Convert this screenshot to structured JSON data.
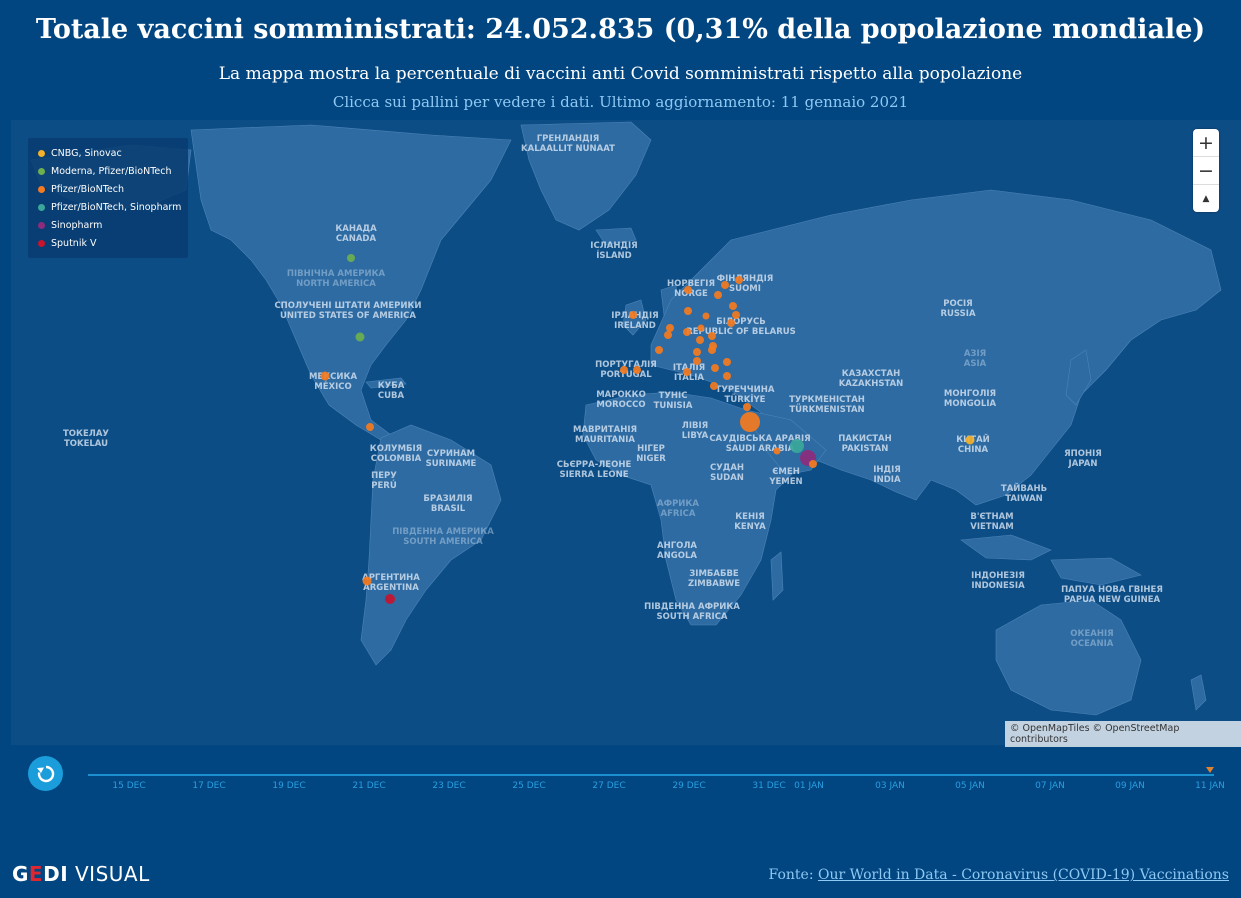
{
  "header": {
    "title": "Totale vaccini somministrati: 24.052.835 (0,31% della popolazione mondiale)",
    "subtitle": "La mappa mostra la percentuale di vaccini anti Covid somministrati rispetto alla popolazione",
    "hint": "Clicca sui pallini per vedere i dati. Ultimo aggiornamento: 11 gennaio 2021"
  },
  "legend": [
    {
      "label": "CNBG, Sinovac",
      "color": "#f2b02b"
    },
    {
      "label": "Moderna, Pfizer/BioNTech",
      "color": "#6db04f"
    },
    {
      "label": "Pfizer/BioNTech",
      "color": "#f47b20"
    },
    {
      "label": "Pfizer/BioNTech, Sinopharm",
      "color": "#3aa79a"
    },
    {
      "label": "Sinopharm",
      "color": "#8d2c7c"
    },
    {
      "label": "Sputnik V",
      "color": "#c8142c"
    }
  ],
  "zoom": {
    "in": "+",
    "out": "−",
    "reset": "▲"
  },
  "map_labels": [
    {
      "text": "ГРЕНЛАНДІЯ",
      "text2": "KALAALLIT NUNAAT"
    },
    {
      "text": "ІСЛАНДІЯ",
      "text2": "ÍSLAND"
    },
    {
      "text": "КАНАДА",
      "text2": "CANADA"
    },
    {
      "text": "ПІВНІЧНА АМЕРИКА",
      "text2": "NORTH AMERICA"
    },
    {
      "text": "СПОЛУЧЕНІ ШТАТИ АМЕРИКИ",
      "text2": "UNITED STATES OF AMERICA"
    },
    {
      "text": "МЕКСИКА",
      "text2": "MÉXICO"
    },
    {
      "text": "КУБА",
      "text2": "CUBA"
    },
    {
      "text": "ТОКЕЛАУ",
      "text2": "TOKELAU"
    },
    {
      "text": "КОЛУМБІЯ",
      "text2": "COLOMBIA"
    },
    {
      "text": "СУРИНАМ",
      "text2": "SURINAME"
    },
    {
      "text": "ПЕРУ",
      "text2": "PERÚ"
    },
    {
      "text": "БРАЗИЛІЯ",
      "text2": "BRASIL"
    },
    {
      "text": "ПІВДЕННА АМЕРИКА",
      "text2": "SOUTH AMERICA"
    },
    {
      "text": "АРГЕНТИНА",
      "text2": "ARGENTINA"
    },
    {
      "text": "НОРВЕГІЯ",
      "text2": "NORGE"
    },
    {
      "text": "ФІНЛЯНДІЯ",
      "text2": "SUOMI"
    },
    {
      "text": "ІРЛАНДІЯ",
      "text2": "IRELAND"
    },
    {
      "text": "БІЛОРУСЬ",
      "text2": "REPUBLIC OF BELARUS"
    },
    {
      "text": "ПОРТУГАЛІЯ",
      "text2": "PORTUGAL"
    },
    {
      "text": "ІТАЛІЯ",
      "text2": "ITALIA"
    },
    {
      "text": "МАРОККО",
      "text2": "MOROCCO"
    },
    {
      "text": "ТУНІС",
      "text2": "TUNISIA"
    },
    {
      "text": "ТУРЕЧЧИНА",
      "text2": "TÜRKİYE"
    },
    {
      "text": "МАВРИТАНІЯ",
      "text2": "MAURITANIA"
    },
    {
      "text": "ЛІВІЯ",
      "text2": "LIBYA"
    },
    {
      "text": "НІГЕР",
      "text2": "NIGER"
    },
    {
      "text": "СЬЄРРА-ЛЕОНЕ",
      "text2": "SIERRA LEONE"
    },
    {
      "text": "СУДАН",
      "text2": "SUDAN"
    },
    {
      "text": "САУДІВСЬКА АРАВІЯ",
      "text2": "SAUDI ARABIA"
    },
    {
      "text": "ЄМЕН",
      "text2": "YEMEN"
    },
    {
      "text": "АФРИКА",
      "text2": "AFRICA"
    },
    {
      "text": "КЕНІЯ",
      "text2": "KENYA"
    },
    {
      "text": "АНГОЛА",
      "text2": "ANGOLA"
    },
    {
      "text": "ЗІМБАБВЕ",
      "text2": "ZIMBABWE"
    },
    {
      "text": "ПІВДЕННА АФРИКА",
      "text2": "SOUTH AFRICA"
    },
    {
      "text": "РОСІЯ",
      "text2": "RUSSIA"
    },
    {
      "text": "АЗІЯ",
      "text2": "ASIA"
    },
    {
      "text": "КАЗАХСТАН",
      "text2": "KAZAKHSTAN"
    },
    {
      "text": "ТУРКМЕНІСТАН",
      "text2": "TÜRKMENISTAN"
    },
    {
      "text": "МОНГОЛІЯ",
      "text2": "MONGOLIA"
    },
    {
      "text": "ПАКИСТАН",
      "text2": "PAKISTAN"
    },
    {
      "text": "КИТАЙ",
      "text2": "CHINA"
    },
    {
      "text": "ІНДІЯ",
      "text2": "INDIA"
    },
    {
      "text": "ЯПОНІЯ",
      "text2": "JAPAN"
    },
    {
      "text": "ТАЙВАНЬ",
      "text2": "TAIWAN"
    },
    {
      "text": "В'ЄТНАМ",
      "text2": "VIETNAM"
    },
    {
      "text": "ІНДОНЕЗІЯ",
      "text2": "INDONESIA"
    },
    {
      "text": "ПАПУА НОВА ГВІНЕЯ",
      "text2": "PAPUA NEW GUINEA"
    },
    {
      "text": "ОКЕАНІЯ",
      "text2": "OCEANIA"
    }
  ],
  "attribution": "© OpenMapTiles © OpenStreetMap contributors",
  "timeline": {
    "labels": [
      "15 DEC",
      "17 DEC",
      "19 DEC",
      "21 DEC",
      "23 DEC",
      "25 DEC",
      "27 DEC",
      "29 DEC",
      "31 DEC",
      "01 JAN",
      "03 JAN",
      "05 JAN",
      "07 JAN",
      "09 JAN",
      "11 JAN"
    ],
    "current": "11 JAN"
  },
  "footer": {
    "brand_g": "G",
    "brand_e": "E",
    "brand_di": "DI",
    "brand_visual": " VISUAL",
    "source_prefix": "Fonte: ",
    "source_link": "Our World in Data - Coronavirus (COVID-19) Vaccinations"
  },
  "colors": {
    "background": "#014681",
    "land": "#2d6ba2",
    "water": "#0d4d86",
    "accent": "#1b9ddb"
  }
}
